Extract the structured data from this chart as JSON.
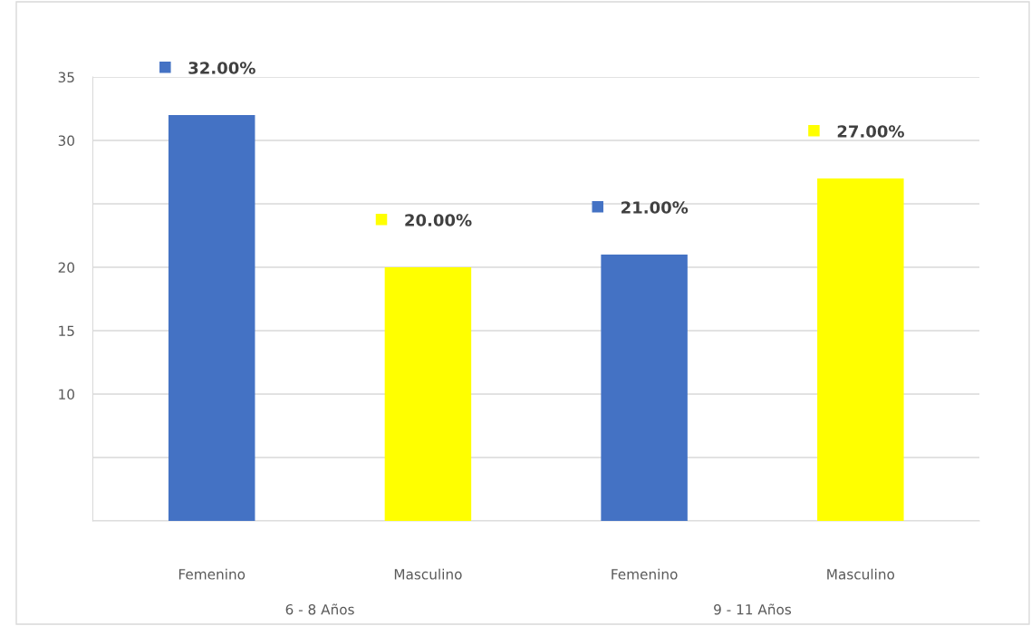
{
  "chart_data": {
    "type": "bar",
    "categories": [
      "Femenino",
      "Masculino",
      "Femenino",
      "Masculino"
    ],
    "values": [
      32,
      20,
      21,
      27
    ],
    "colors": [
      "#4472c4",
      "#ffff00",
      "#4472c4",
      "#ffff00"
    ],
    "value_labels": [
      "32.00%",
      "20.00%",
      "21.00%",
      "27.00%"
    ],
    "annotations": [
      "6 - 8 Años",
      "9 - 11 Años"
    ],
    "ylim": [
      0,
      35
    ],
    "yticks": [
      {
        "value": 0,
        "label": null
      },
      {
        "value": 5,
        "label": null
      },
      10,
      15,
      20,
      {
        "value": 25,
        "label": null
      },
      30,
      35
    ],
    "grid": "y"
  }
}
